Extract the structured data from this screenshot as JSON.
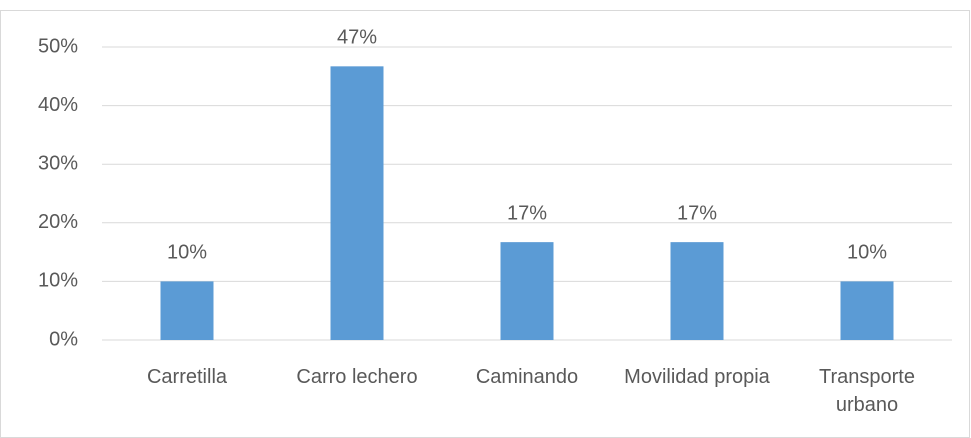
{
  "chart_data": {
    "type": "bar",
    "categories": [
      "Carretilla",
      "Carro lechero",
      "Caminando",
      "Movilidad propia",
      "Transporte urbano"
    ],
    "values": [
      10,
      46.7,
      16.7,
      16.7,
      10
    ],
    "value_labels": [
      "10%",
      "47%",
      "17%",
      "17%",
      "10%"
    ],
    "color": "#5b9bd5",
    "ylim": [
      0,
      50
    ],
    "yticks": [
      {
        "value": 0,
        "label": "0%"
      },
      {
        "value": 10,
        "label": "10%"
      },
      {
        "value": 20,
        "label": "20%"
      },
      {
        "value": 30,
        "label": "30%"
      },
      {
        "value": 40,
        "label": "40%"
      },
      {
        "value": 50,
        "label": "50%"
      }
    ],
    "grid": true
  }
}
